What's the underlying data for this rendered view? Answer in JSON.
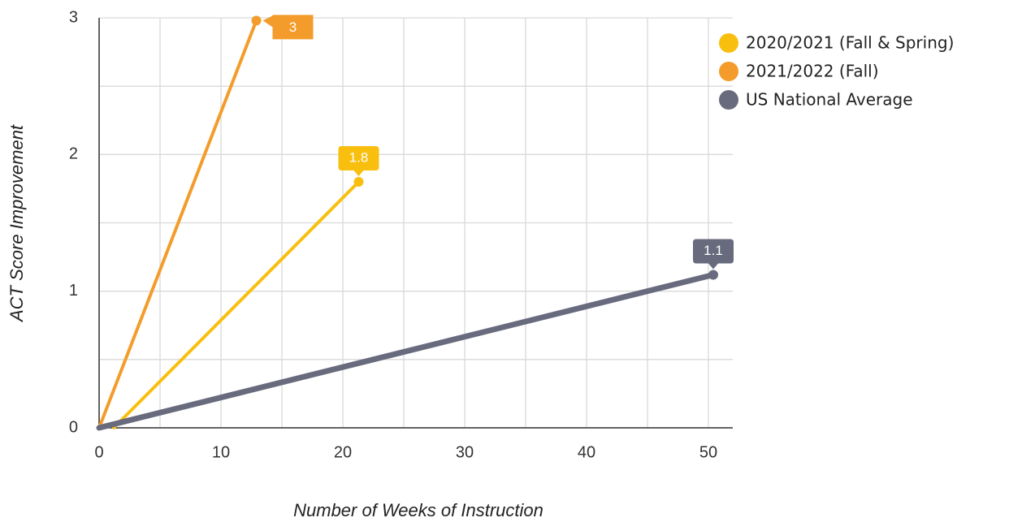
{
  "chart_data": {
    "type": "line",
    "x_label": "Number of Weeks of Instruction",
    "y_label": "ACT Score Improvement",
    "xlim": [
      0,
      52
    ],
    "ylim": [
      0,
      3
    ],
    "xticks": [
      0,
      10,
      20,
      30,
      40,
      50
    ],
    "yticks": [
      0,
      1,
      2,
      3
    ],
    "xminor_ticks": [
      5,
      15,
      25,
      35,
      45
    ],
    "yminor_ticks": [
      0.5,
      1.5,
      2.5
    ],
    "grid": true,
    "legend": "upper right",
    "series": [
      {
        "name": "2020/2021 (Fall & Spring)",
        "color": "#f9bf0f",
        "x": [
          1.2,
          21.3
        ],
        "values": [
          0,
          1.8
        ],
        "value_labels": [
          null,
          "1.8"
        ]
      },
      {
        "name": "2021/2022 (Fall)",
        "color": "#f39c2b",
        "x": [
          0,
          12.9
        ],
        "values": [
          0,
          2.98
        ],
        "value_labels": [
          null,
          "3"
        ]
      },
      {
        "name": "US National Average",
        "color": "#686b7d",
        "x": [
          0,
          50.4
        ],
        "values": [
          0,
          1.12
        ],
        "value_labels": [
          null,
          "1.1"
        ]
      }
    ]
  }
}
